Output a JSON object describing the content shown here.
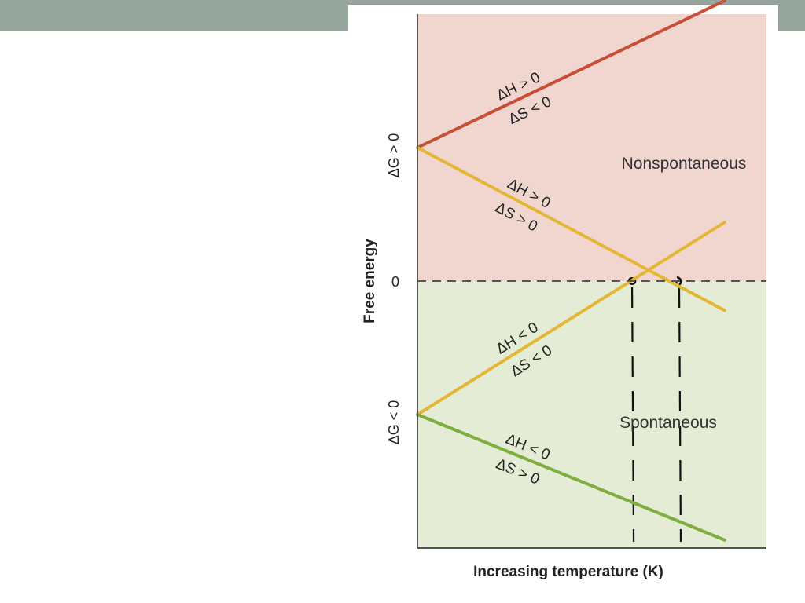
{
  "colors": {
    "top_bar": "#96a59c",
    "nonspontaneous_region": "#f1d6cf",
    "spontaneous_region": "#e4ecd5",
    "series_dh_pos_ds_neg": "#c64f35",
    "series_dh_pos_ds_pos": "#e3b735",
    "series_dh_neg_ds_neg": "#e3b735",
    "series_dh_neg_ds_pos": "#7fae3e",
    "axis": "#555555",
    "handwriting": "#111111"
  },
  "chart_data": {
    "type": "line",
    "title": "",
    "xlabel": "Increasing temperature (K)",
    "ylabel": "Free energy",
    "x_range": [
      0,
      1
    ],
    "y_range": [
      -1,
      1
    ],
    "y_ticks": [
      {
        "value": 0,
        "label": "0"
      }
    ],
    "y_region_labels": {
      "upper": "ΔG > 0",
      "lower": "ΔG < 0"
    },
    "regions": [
      {
        "label": "Nonspontaneous",
        "y_from": 0,
        "y_to": 1
      },
      {
        "label": "Spontaneous",
        "y_from": -1,
        "y_to": 0
      }
    ],
    "zero_line": "dashed",
    "series": [
      {
        "id": "dh_pos_ds_neg",
        "line1": "ΔH > 0",
        "line2": "ΔS < 0",
        "x": [
          0,
          0.88
        ],
        "y": [
          0.5,
          1.05
        ]
      },
      {
        "id": "dh_pos_ds_pos",
        "line1": "ΔH > 0",
        "line2": "ΔS > 0",
        "x": [
          0,
          0.88
        ],
        "y": [
          0.5,
          -0.11
        ]
      },
      {
        "id": "dh_neg_ds_neg",
        "line1": "ΔH < 0",
        "line2": "ΔS < 0",
        "x": [
          0,
          0.88
        ],
        "y": [
          -0.5,
          0.22
        ]
      },
      {
        "id": "dh_neg_ds_pos",
        "line1": "ΔH < 0",
        "line2": "ΔS > 0",
        "x": [
          0,
          0.88
        ],
        "y": [
          -0.5,
          -0.97
        ]
      }
    ],
    "annotations": {
      "handwritten_markers": [
        {
          "x": 0.615,
          "y": 0
        },
        {
          "x": 0.75,
          "y": 0
        }
      ]
    }
  }
}
